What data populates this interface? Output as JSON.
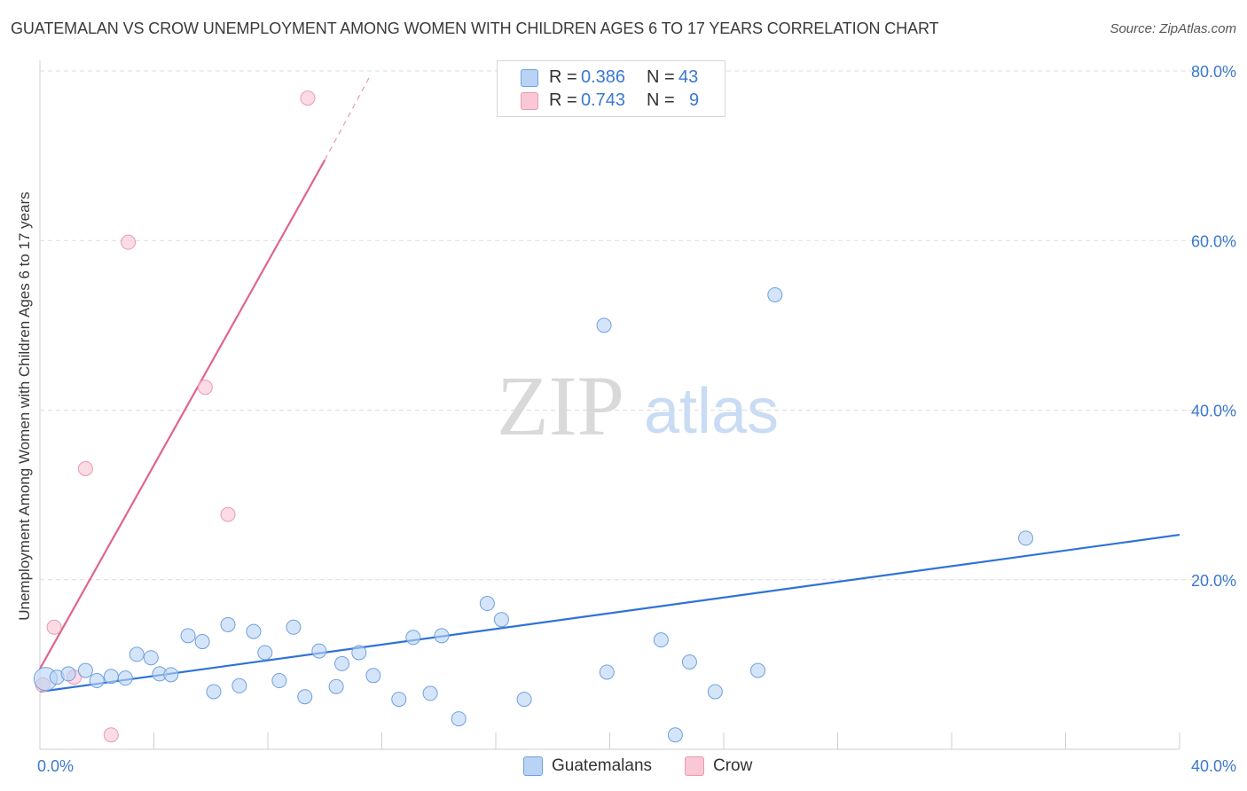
{
  "title": "GUATEMALAN VS CROW UNEMPLOYMENT AMONG WOMEN WITH CHILDREN AGES 6 TO 17 YEARS CORRELATION CHART",
  "source": "Source: ZipAtlas.com",
  "watermark": {
    "zip": "ZIP",
    "atlas": "atlas"
  },
  "colors": {
    "blue_fill": "#b9d3f5",
    "blue_stroke": "#6fa0df",
    "blue_line": "#2f72d6",
    "pink_fill": "#f9c7d5",
    "pink_stroke": "#e99ab2",
    "pink_line": "#e0648f",
    "grid": "#dcdcdc",
    "axis_text": "#3b78d0"
  },
  "legend": {
    "rows": [
      {
        "r_label": "R = ",
        "r_value": "0.386",
        "n_label": "N = ",
        "n_value": "43"
      },
      {
        "r_label": "R = ",
        "r_value": "0.743",
        "n_label": "N = ",
        "n_value": "9"
      }
    ]
  },
  "bottom_legend": {
    "series1": "Guatemalans",
    "series2": "Crow"
  },
  "chart_data": {
    "type": "scatter",
    "title": "GUATEMALAN VS CROW UNEMPLOYMENT AMONG WOMEN WITH CHILDREN AGES 6 TO 17 YEARS CORRELATION CHART",
    "xlabel": "",
    "ylabel": "Unemployment Among Women with Children Ages 6 to 17 years",
    "xlim": [
      0,
      40
    ],
    "ylim": [
      0,
      80
    ],
    "x_tick_labels": [
      "0.0%",
      "40.0%"
    ],
    "y_ticks": [
      20,
      40,
      60,
      80
    ],
    "y_tick_labels": [
      "20.0%",
      "40.0%",
      "60.0%",
      "80.0%"
    ],
    "grid": true,
    "series": [
      {
        "name": "Guatemalans",
        "r": 0.386,
        "n": 43,
        "points": [
          [
            0.2,
            8.3
          ],
          [
            0.6,
            8.5
          ],
          [
            1.0,
            8.9
          ],
          [
            1.6,
            9.3
          ],
          [
            2.0,
            8.1
          ],
          [
            2.5,
            8.6
          ],
          [
            3.0,
            8.4
          ],
          [
            3.4,
            11.2
          ],
          [
            3.9,
            10.8
          ],
          [
            4.2,
            8.9
          ],
          [
            4.6,
            8.8
          ],
          [
            5.2,
            13.4
          ],
          [
            5.7,
            12.7
          ],
          [
            6.1,
            6.8
          ],
          [
            6.6,
            14.7
          ],
          [
            7.0,
            7.5
          ],
          [
            7.5,
            13.9
          ],
          [
            7.9,
            11.4
          ],
          [
            8.4,
            8.1
          ],
          [
            8.9,
            14.4
          ],
          [
            9.3,
            6.2
          ],
          [
            9.8,
            11.6
          ],
          [
            10.4,
            7.4
          ],
          [
            10.6,
            10.1
          ],
          [
            11.2,
            11.4
          ],
          [
            11.7,
            8.7
          ],
          [
            12.6,
            5.9
          ],
          [
            13.1,
            13.2
          ],
          [
            13.7,
            6.6
          ],
          [
            14.1,
            13.4
          ],
          [
            14.7,
            3.6
          ],
          [
            15.7,
            17.2
          ],
          [
            16.2,
            15.3
          ],
          [
            17.0,
            5.9
          ],
          [
            19.8,
            50.0
          ],
          [
            19.9,
            9.1
          ],
          [
            21.8,
            12.9
          ],
          [
            22.3,
            1.7
          ],
          [
            22.8,
            10.3
          ],
          [
            23.7,
            6.8
          ],
          [
            25.2,
            9.3
          ],
          [
            25.8,
            53.6
          ],
          [
            34.6,
            24.9
          ]
        ],
        "trend": {
          "x0": 0,
          "y0": 6.8,
          "x1": 40,
          "y1": 25.3
        }
      },
      {
        "name": "Crow",
        "r": 0.743,
        "n": 9,
        "points": [
          [
            0.1,
            7.6
          ],
          [
            0.5,
            14.4
          ],
          [
            1.2,
            8.5
          ],
          [
            1.6,
            33.1
          ],
          [
            2.5,
            1.7
          ],
          [
            3.1,
            59.8
          ],
          [
            5.8,
            42.7
          ],
          [
            6.6,
            27.7
          ],
          [
            9.4,
            76.8
          ]
        ],
        "trend": {
          "x0": 0,
          "y0": 9.5,
          "x1": 10.0,
          "y1": 69.5,
          "dash_to_x": 11.6,
          "dash_to_y": 79.5
        }
      }
    ]
  }
}
